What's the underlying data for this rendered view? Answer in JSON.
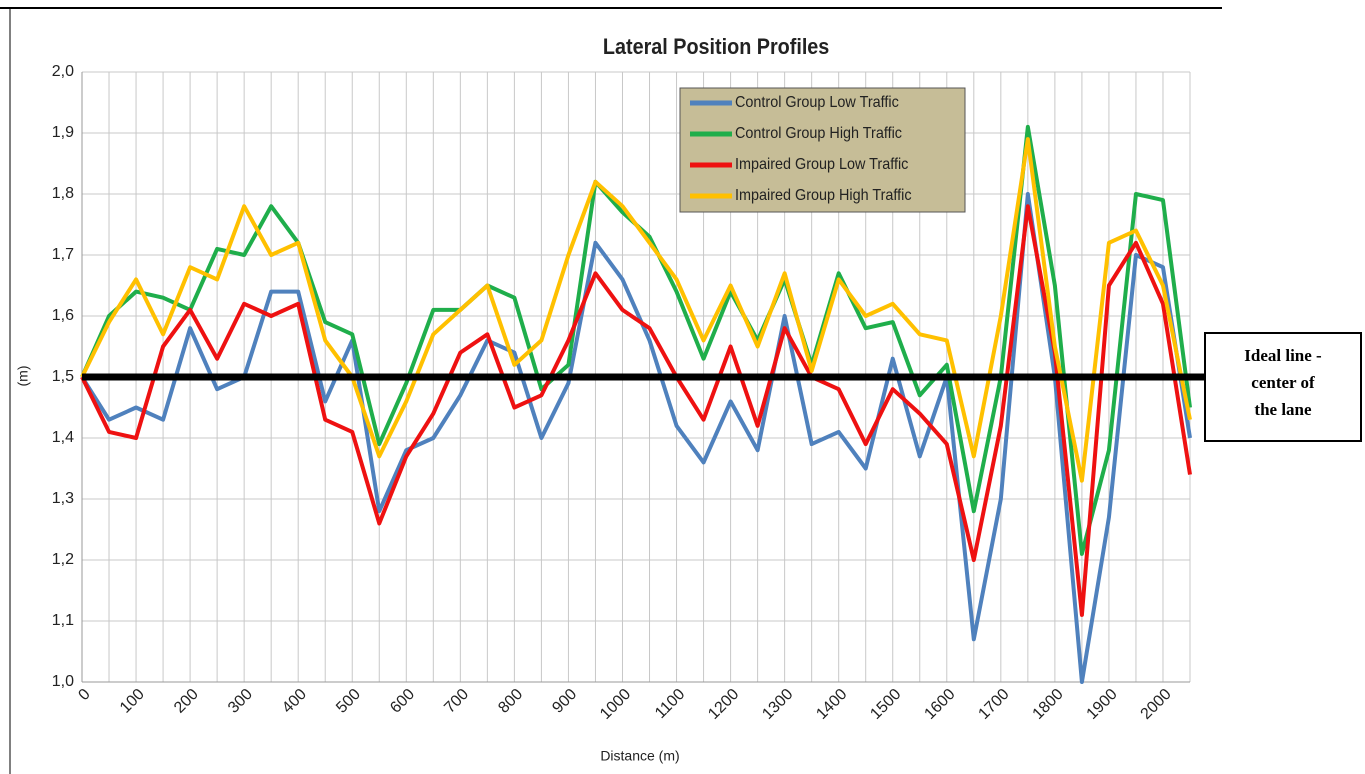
{
  "chart_data": {
    "type": "line",
    "title": "Lateral Position Profiles",
    "xlabel": "Distance (m)",
    "ylabel": "(m)",
    "x": [
      0,
      50,
      100,
      150,
      200,
      250,
      300,
      350,
      400,
      450,
      500,
      550,
      600,
      650,
      700,
      750,
      800,
      850,
      900,
      950,
      1000,
      1050,
      1100,
      1150,
      1200,
      1250,
      1300,
      1350,
      1400,
      1450,
      1500,
      1550,
      1600,
      1650,
      1700,
      1750,
      1800,
      1850,
      1900,
      1950,
      2000,
      2050
    ],
    "series": [
      {
        "name": "Control Group Low Traffic",
        "color": "#4f81bd",
        "values": [
          1.5,
          1.43,
          1.45,
          1.43,
          1.58,
          1.48,
          1.5,
          1.64,
          1.64,
          1.46,
          1.56,
          1.28,
          1.38,
          1.4,
          1.47,
          1.56,
          1.54,
          1.4,
          1.49,
          1.72,
          1.66,
          1.56,
          1.42,
          1.36,
          1.46,
          1.38,
          1.6,
          1.39,
          1.41,
          1.35,
          1.53,
          1.37,
          1.5,
          1.07,
          1.3,
          1.8,
          1.5,
          1.0,
          1.27,
          1.7,
          1.68,
          1.4
        ]
      },
      {
        "name": "Control Group High Traffic",
        "color": "#1fae4b",
        "values": [
          1.5,
          1.6,
          1.64,
          1.63,
          1.61,
          1.71,
          1.7,
          1.78,
          1.72,
          1.59,
          1.57,
          1.39,
          1.49,
          1.61,
          1.61,
          1.65,
          1.63,
          1.48,
          1.52,
          1.82,
          1.77,
          1.73,
          1.64,
          1.53,
          1.64,
          1.56,
          1.66,
          1.52,
          1.67,
          1.58,
          1.59,
          1.47,
          1.52,
          1.28,
          1.5,
          1.91,
          1.65,
          1.21,
          1.38,
          1.8,
          1.79,
          1.45
        ]
      },
      {
        "name": "Impaired Group Low Traffic",
        "color": "#ee1111",
        "values": [
          1.5,
          1.41,
          1.4,
          1.55,
          1.61,
          1.53,
          1.62,
          1.6,
          1.62,
          1.43,
          1.41,
          1.26,
          1.37,
          1.44,
          1.54,
          1.57,
          1.45,
          1.47,
          1.56,
          1.67,
          1.61,
          1.58,
          1.5,
          1.43,
          1.55,
          1.42,
          1.58,
          1.5,
          1.48,
          1.39,
          1.48,
          1.44,
          1.39,
          1.2,
          1.42,
          1.78,
          1.54,
          1.11,
          1.65,
          1.72,
          1.62,
          1.34
        ]
      },
      {
        "name": "Impaired Group High Traffic",
        "color": "#ffc000",
        "values": [
          1.5,
          1.59,
          1.66,
          1.57,
          1.68,
          1.66,
          1.78,
          1.7,
          1.72,
          1.56,
          1.5,
          1.37,
          1.46,
          1.57,
          1.61,
          1.65,
          1.52,
          1.56,
          1.7,
          1.82,
          1.78,
          1.72,
          1.66,
          1.56,
          1.65,
          1.55,
          1.67,
          1.51,
          1.66,
          1.6,
          1.62,
          1.57,
          1.56,
          1.37,
          1.6,
          1.89,
          1.55,
          1.33,
          1.72,
          1.74,
          1.65,
          1.43
        ]
      }
    ],
    "xlim": [
      0,
      2050
    ],
    "xticks": [
      0,
      100,
      200,
      300,
      400,
      500,
      600,
      700,
      800,
      900,
      1000,
      1100,
      1200,
      1300,
      1400,
      1500,
      1600,
      1700,
      1800,
      1900,
      2000
    ],
    "ylim": [
      1.0,
      2.0
    ],
    "yticks": [
      {
        "value": 1.0,
        "label": "1,0"
      },
      {
        "value": 1.1,
        "label": "1,1"
      },
      {
        "value": 1.2,
        "label": "1,2"
      },
      {
        "value": 1.3,
        "label": "1,3"
      },
      {
        "value": 1.4,
        "label": "1,4"
      },
      {
        "value": 1.5,
        "label": "1,5"
      },
      {
        "value": 1.6,
        "label": "1,6"
      },
      {
        "value": 1.7,
        "label": "1,7"
      },
      {
        "value": 1.8,
        "label": "1,8"
      },
      {
        "value": 1.9,
        "label": "1,9"
      },
      {
        "value": 2.0,
        "label": "2,0"
      }
    ],
    "grid": true,
    "legend": "top",
    "reference_line": {
      "value": 1.5,
      "color": "#000000",
      "label": [
        "Ideal line -",
        "center of",
        "the lane"
      ]
    }
  }
}
